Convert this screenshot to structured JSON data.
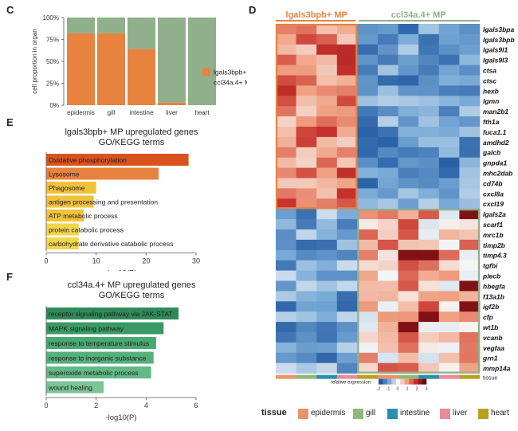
{
  "panels": {
    "C": {
      "letter": "C",
      "chart_data": {
        "type": "bar",
        "stacked": true,
        "categories": [
          "epidermis",
          "gill",
          "intestine",
          "liver",
          "heart"
        ],
        "series": [
          {
            "name": "lgals3bpb+ MP",
            "color": "#e8823f",
            "values": [
              82,
              82,
              64,
              3,
              0
            ]
          },
          {
            "name": "ccl34a.4+ MP",
            "color": "#8fb08a",
            "values": [
              18,
              18,
              36,
              97,
              100
            ]
          }
        ],
        "ylabel": "cell proportion in organ",
        "yticks": [
          "0%",
          "25%",
          "50%",
          "75%",
          "100%"
        ],
        "ylim": [
          0,
          100
        ],
        "legend_position": "right"
      }
    },
    "E": {
      "letter": "E",
      "title_line1": "lgals3bpb+ MP upregulated genes",
      "title_line2": "GO/KEGG terms",
      "chart_data": {
        "type": "bar",
        "orientation": "horizontal",
        "categories": [
          "Oxidative phosphorylation",
          "Lysosome",
          "Phagosome",
          "antigen processing and presentation",
          "ATP metabolic process",
          "protein catabolic process",
          "carbohydrate derivative catabolic process"
        ],
        "values": [
          28.5,
          22.5,
          10,
          9.5,
          7.5,
          6.5,
          6.5
        ],
        "colors": [
          "#d9531e",
          "#e8823f",
          "#f0c23a",
          "#f0c23a",
          "#f0c23a",
          "#f3d54a",
          "#f3d54a"
        ],
        "xlabel": "-log10(P)",
        "xticks": [
          "0",
          "10",
          "20",
          "30"
        ],
        "xlim": [
          0,
          30
        ]
      }
    },
    "F": {
      "letter": "F",
      "title_line1": "ccl34a.4+ MP upregulated genes",
      "title_line2": "GO/KEGG terms",
      "chart_data": {
        "type": "bar",
        "orientation": "horizontal",
        "categories": [
          "receptor signaling pathway via JAK-STAT",
          "MAPK signaling pathway",
          "response to temperature stimulus",
          "response to inorganic substance",
          "superoxide metabolic process",
          "wound healing"
        ],
        "values": [
          5.3,
          4.7,
          4.4,
          4.3,
          4.2,
          2.3
        ],
        "colors": [
          "#2f8a5a",
          "#3a9a64",
          "#4aa873",
          "#55b07c",
          "#62b886",
          "#7cc596"
        ],
        "xlabel": "-log10(P)",
        "xticks": [
          "0",
          "2",
          "4",
          "6"
        ],
        "xlim": [
          0,
          6
        ]
      }
    },
    "D": {
      "letter": "D",
      "group1": "lgals3bpb+ MP",
      "group2": "ccl34a.4+ MP",
      "group1_color": "#e8823f",
      "group2_color": "#8fb08a",
      "genes": [
        "lgals3bpa",
        "lgals3bpb",
        "lgals9l1",
        "lgals9l3",
        "ctsa",
        "ctsc",
        "hexb",
        "lgmn",
        "man2b1",
        "fth1a",
        "fuca1.1",
        "amdhd2",
        "galcb",
        "gnpda1",
        "mhc2dab",
        "cd74b",
        "cxcl8a",
        "cxcl19",
        "lgals2a",
        "scarf1",
        "mrc1b",
        "timp2b",
        "timp4.3",
        "tgfbi",
        "plecb",
        "hbegfa",
        "f13a1b",
        "igf2b",
        "cfp",
        "wt1b",
        "vcanb",
        "vegfaa",
        "grn1",
        "mmp14a"
      ],
      "legend_title": "relative expression",
      "legend_ticks": [
        "-2",
        "-1",
        "0",
        "1",
        "2",
        "3"
      ],
      "tissue_row_label": "tissue",
      "tissue_title": "tissue",
      "tissues": [
        {
          "name": "epidermis",
          "color": "#e8956a"
        },
        {
          "name": "gill",
          "color": "#8fb87a"
        },
        {
          "name": "intestine",
          "color": "#2a8fa8"
        },
        {
          "name": "liver",
          "color": "#e88a9a"
        },
        {
          "name": "heart",
          "color": "#b8a020"
        }
      ]
    }
  }
}
